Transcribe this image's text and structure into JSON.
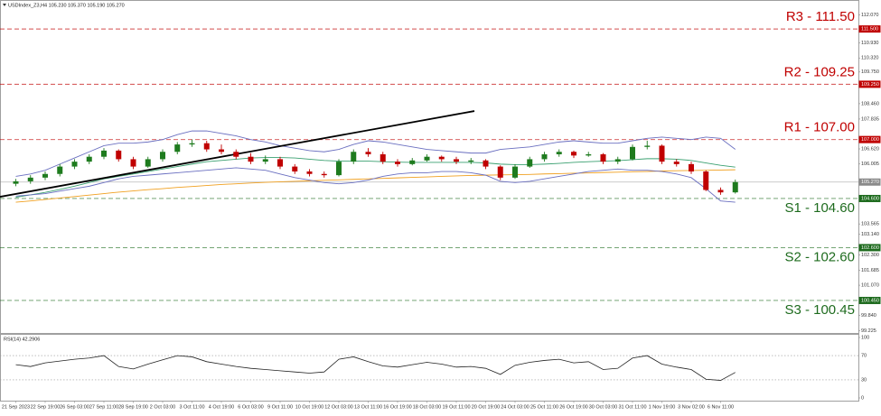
{
  "chart_data": [
    {
      "type": "candlestick",
      "title": "USDIndex_Z3,H4 105.230 105.370 105.190 105.270",
      "categories": [
        "21 Sep 2023",
        null,
        "22 Sep 19:00",
        null,
        "26 Sep 03:00",
        null,
        "27 Sep 11:00",
        null,
        "28 Sep 19:00",
        null,
        "2 Oct 03:00",
        null,
        "3 Oct 11:00",
        null,
        "4 Oct 19:00",
        null,
        "6 Oct 03:00",
        null,
        "9 Oct 11:00",
        null,
        "10 Oct 19:00",
        null,
        "12 Oct 03:00",
        null,
        "13 Oct 11:00",
        null,
        "16 Oct 19:00",
        null,
        "18 Oct 03:00",
        null,
        "19 Oct 11:00",
        null,
        "20 Oct 19:00",
        null,
        "24 Oct 03:00",
        null,
        "25 Oct 11:00",
        null,
        "26 Oct 19:00",
        null,
        "30 Oct 03:00",
        null,
        "31 Oct 11:00",
        null,
        "1 Nov 19:00",
        null,
        "3 Nov 02:00",
        null,
        "6 Nov 11:00",
        null
      ],
      "open": [
        105.2,
        105.3,
        105.45,
        105.6,
        105.9,
        106.1,
        106.3,
        106.55,
        106.2,
        105.9,
        106.2,
        106.5,
        106.8,
        106.85,
        106.6,
        106.5,
        106.3,
        106.1,
        106.2,
        105.9,
        105.7,
        105.6,
        105.55,
        106.1,
        106.5,
        106.4,
        106.1,
        106.0,
        106.15,
        106.3,
        106.2,
        106.1,
        106.15,
        105.9,
        105.45,
        105.9,
        106.2,
        106.4,
        106.5,
        106.35,
        106.4,
        106.1,
        106.2,
        106.7,
        106.75,
        106.1,
        106.0,
        105.7,
        104.95,
        104.85
      ],
      "high": [
        105.4,
        105.55,
        105.7,
        106.0,
        106.2,
        106.4,
        106.65,
        106.6,
        106.3,
        106.3,
        106.6,
        106.9,
        107.0,
        106.95,
        106.8,
        106.6,
        106.45,
        106.35,
        106.3,
        106.0,
        105.8,
        105.7,
        106.2,
        106.6,
        106.65,
        106.5,
        106.2,
        106.25,
        106.4,
        106.35,
        106.3,
        106.25,
        106.2,
        105.95,
        106.0,
        106.3,
        106.5,
        106.6,
        106.55,
        106.5,
        106.45,
        106.3,
        106.8,
        106.95,
        106.8,
        106.2,
        106.1,
        105.75,
        105.05,
        105.37
      ],
      "low": [
        105.1,
        105.2,
        105.35,
        105.5,
        105.8,
        106.0,
        106.2,
        106.1,
        105.8,
        105.85,
        106.1,
        106.4,
        106.7,
        106.5,
        106.4,
        106.2,
        106.0,
        106.0,
        105.8,
        105.6,
        105.5,
        105.45,
        105.5,
        106.0,
        106.3,
        106.0,
        105.9,
        105.95,
        106.1,
        106.1,
        106.0,
        106.0,
        105.8,
        105.35,
        105.4,
        105.85,
        106.1,
        106.3,
        106.25,
        106.3,
        106.0,
        106.0,
        106.15,
        106.6,
        106.0,
        105.9,
        105.6,
        104.9,
        104.75,
        104.8
      ],
      "close": [
        105.3,
        105.45,
        105.6,
        105.9,
        106.1,
        106.3,
        106.55,
        106.2,
        105.9,
        106.2,
        106.5,
        106.8,
        106.85,
        106.6,
        106.5,
        106.3,
        106.1,
        106.2,
        105.9,
        105.7,
        105.6,
        105.55,
        106.1,
        106.5,
        106.4,
        106.1,
        106.0,
        106.15,
        106.3,
        106.2,
        106.1,
        106.15,
        105.9,
        105.45,
        105.9,
        106.2,
        106.4,
        106.5,
        106.35,
        106.4,
        106.1,
        106.2,
        106.7,
        106.75,
        106.1,
        106.0,
        105.7,
        104.95,
        104.85,
        105.27
      ],
      "up_color": "#1e7b1e",
      "down_color": "#c00000",
      "overlays": [
        {
          "color": "#f0a020",
          "values": [
            104.45,
            104.5,
            104.56,
            104.62,
            104.68,
            104.74,
            104.8,
            104.86,
            104.91,
            104.96,
            105.0,
            105.05,
            105.09,
            105.13,
            105.17,
            105.2,
            105.23,
            105.26,
            105.28,
            105.3,
            105.32,
            105.34,
            105.36,
            105.38,
            105.4,
            105.42,
            105.44,
            105.46,
            105.48,
            105.5,
            105.52,
            105.54,
            105.55,
            105.56,
            105.57,
            105.58,
            105.6,
            105.61,
            105.63,
            105.64,
            105.66,
            105.67,
            105.69,
            105.7,
            105.72,
            105.73,
            105.74,
            105.75,
            105.76,
            105.77
          ]
        },
        {
          "color": "#3aa070",
          "values": [
            104.65,
            104.75,
            104.85,
            104.97,
            105.1,
            105.25,
            105.4,
            105.5,
            105.6,
            105.7,
            105.8,
            105.9,
            106.0,
            106.1,
            106.15,
            106.2,
            106.25,
            106.27,
            106.27,
            106.25,
            106.2,
            106.15,
            106.12,
            106.12,
            106.12,
            106.1,
            106.08,
            106.07,
            106.07,
            106.07,
            106.07,
            106.07,
            106.05,
            106.0,
            105.98,
            105.98,
            106.0,
            106.03,
            106.07,
            106.1,
            106.12,
            106.14,
            106.18,
            106.22,
            106.22,
            106.2,
            106.15,
            106.05,
            105.95,
            105.88
          ]
        },
        {
          "color": "#6a6fc0",
          "values": [
            105.5,
            105.6,
            105.75,
            106.0,
            106.25,
            106.5,
            106.75,
            106.85,
            106.85,
            106.9,
            107.0,
            107.2,
            107.35,
            107.35,
            107.25,
            107.15,
            107.0,
            106.9,
            106.75,
            106.65,
            106.55,
            106.5,
            106.6,
            106.8,
            106.95,
            106.9,
            106.8,
            106.7,
            106.6,
            106.55,
            106.5,
            106.45,
            106.45,
            106.6,
            106.65,
            106.7,
            106.8,
            106.9,
            106.95,
            106.9,
            106.85,
            106.85,
            106.95,
            107.05,
            107.1,
            107.05,
            107.0,
            107.1,
            107.05,
            106.6
          ]
        },
        {
          "color": "#6a6fc0",
          "values": [
            104.7,
            104.75,
            104.8,
            104.9,
            105.0,
            105.1,
            105.25,
            105.4,
            105.5,
            105.55,
            105.6,
            105.65,
            105.7,
            105.75,
            105.8,
            105.85,
            105.8,
            105.75,
            105.6,
            105.45,
            105.35,
            105.25,
            105.2,
            105.25,
            105.35,
            105.5,
            105.6,
            105.65,
            105.65,
            105.7,
            105.7,
            105.65,
            105.55,
            105.3,
            105.25,
            105.3,
            105.4,
            105.5,
            105.6,
            105.7,
            105.75,
            105.8,
            105.75,
            105.75,
            105.7,
            105.6,
            105.45,
            105.0,
            104.5,
            104.45
          ]
        }
      ],
      "trendline": {
        "color": "#000000",
        "values": [
          104.67,
          108.16
        ]
      },
      "levels": [
        {
          "label": "R3 - 111.50",
          "value": 111.5,
          "axis_label": "111.500",
          "color": "#c00000"
        },
        {
          "label": "R2 - 109.25",
          "value": 109.25,
          "axis_label": "109.250",
          "color": "#c00000"
        },
        {
          "label": "R1 - 107.00",
          "value": 107.0,
          "axis_label": "107.000",
          "color": "#c00000"
        },
        {
          "label": "S1 - 104.60",
          "value": 104.6,
          "axis_label": "104.600",
          "color": "#1e6b1e"
        },
        {
          "label": "S2 - 102.60",
          "value": 102.6,
          "axis_label": "102.600",
          "color": "#1e6b1e"
        },
        {
          "label": "S3 - 100.45",
          "value": 100.45,
          "axis_label": "100.450",
          "color": "#1e6b1e"
        }
      ],
      "last_price": {
        "value": 105.27,
        "label": "105.270",
        "color": "#8a8a8a"
      },
      "ylim": [
        99.09,
        112.68
      ],
      "yticks": [
        {
          "value": 112.07,
          "label": "112.070"
        },
        {
          "value": 110.93,
          "label": "110.930"
        },
        {
          "value": 110.32,
          "label": "110.320"
        },
        {
          "value": 109.75,
          "label": "109.750"
        },
        {
          "value": 108.46,
          "label": "108.460"
        },
        {
          "value": 107.835,
          "label": "107.835"
        },
        {
          "value": 106.62,
          "label": "106.620"
        },
        {
          "value": 106.005,
          "label": "106.005"
        },
        {
          "value": 103.565,
          "label": "103.565"
        },
        {
          "value": 103.14,
          "label": "103.140"
        },
        {
          "value": 102.3,
          "label": "102.300"
        },
        {
          "value": 101.685,
          "label": "101.685"
        },
        {
          "value": 101.07,
          "label": "101.070"
        },
        {
          "value": 99.84,
          "label": "99.840"
        },
        {
          "value": 99.225,
          "label": "99.225"
        }
      ]
    },
    {
      "type": "line",
      "title": "RSI(14) 42.2906",
      "values": [
        55,
        52,
        58,
        61,
        64,
        66,
        70,
        52,
        48,
        56,
        63,
        70,
        68,
        60,
        56,
        52,
        49,
        47,
        45,
        43,
        41,
        43,
        64,
        68,
        60,
        53,
        51,
        55,
        59,
        56,
        51,
        52,
        49,
        39,
        54,
        59,
        62,
        64,
        58,
        60,
        47,
        49,
        66,
        70,
        56,
        51,
        47,
        31,
        29,
        42.29
      ],
      "color": "#222222",
      "ylim": [
        0,
        100
      ],
      "yticks": [
        0,
        30,
        70,
        100
      ],
      "grid": true
    }
  ]
}
